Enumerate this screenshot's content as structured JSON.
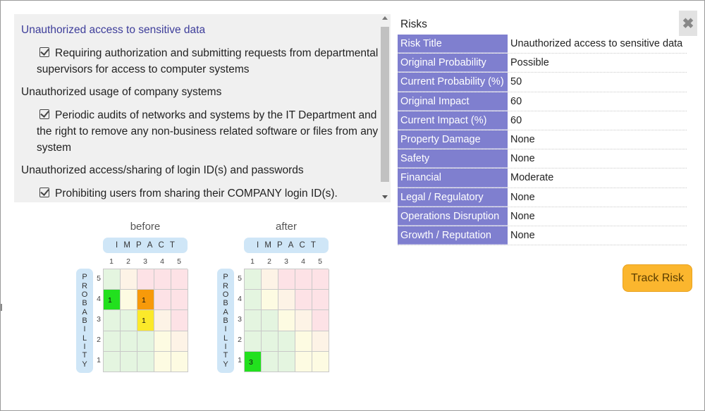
{
  "risk_list": {
    "groups": [
      {
        "risk": "Unauthorized access to sensitive data",
        "active": true,
        "mitigations": [
          "Requiring authorization and submitting requests from departmental supervisors for access to computer systems"
        ]
      },
      {
        "risk": "Unauthorized usage of company systems",
        "active": false,
        "mitigations": [
          "Periodic audits of networks and systems by the IT Department and the right to remove any non-business related software or files from any system"
        ]
      },
      {
        "risk": "Unauthorized access/sharing of login ID(s) and passwords",
        "active": false,
        "mitigations": [
          "Prohibiting users from sharing their COMPANY login ID(s)."
        ]
      }
    ]
  },
  "matrices": [
    {
      "title": "before",
      "impact_letters": [
        "I",
        "M",
        "P",
        "A",
        "C",
        "T"
      ],
      "probability_letters": [
        "P",
        "R",
        "O",
        "B",
        "A",
        "B",
        "I",
        "L",
        "I",
        "T",
        "Y"
      ],
      "columns": [
        "1",
        "2",
        "3",
        "4",
        "5"
      ],
      "rows": [
        "5",
        "4",
        "3",
        "2",
        "1"
      ],
      "markers": [
        {
          "probability": 4,
          "impact": 1,
          "count": "1",
          "color": "#22e01e"
        },
        {
          "probability": 4,
          "impact": 3,
          "count": "1",
          "color": "#f79a0a"
        },
        {
          "probability": 3,
          "impact": 3,
          "count": "1",
          "color": "#fbe92a"
        }
      ]
    },
    {
      "title": "after",
      "impact_letters": [
        "I",
        "M",
        "P",
        "A",
        "C",
        "T"
      ],
      "probability_letters": [
        "P",
        "R",
        "O",
        "B",
        "A",
        "B",
        "I",
        "L",
        "I",
        "T",
        "Y"
      ],
      "columns": [
        "1",
        "2",
        "3",
        "4",
        "5"
      ],
      "rows": [
        "5",
        "4",
        "3",
        "2",
        "1"
      ],
      "markers": [
        {
          "probability": 1,
          "impact": 1,
          "count": "3",
          "color": "#22e01e"
        }
      ]
    }
  ],
  "zone_colors": {
    "green": "#e4f5e0",
    "yellow": "#fdfbe2",
    "peach": "#fdf3e6",
    "pink": "#fde2e6"
  },
  "details": {
    "title": "Risks",
    "rows": [
      {
        "label": "Risk Title",
        "value": "Unauthorized access to sensitive data"
      },
      {
        "label": "Original Probability",
        "value": "Possible"
      },
      {
        "label": "Current Probability (%)",
        "value": "50"
      },
      {
        "label": "Original Impact",
        "value": "60"
      },
      {
        "label": "Current Impact (%)",
        "value": "60"
      },
      {
        "label": "Property Damage",
        "value": "None"
      },
      {
        "label": "Safety",
        "value": "None"
      },
      {
        "label": "Financial",
        "value": "Moderate"
      },
      {
        "label": "Legal / Regulatory",
        "value": "None"
      },
      {
        "label": "Operations Disruption",
        "value": "None"
      },
      {
        "label": "Growth / Reputation",
        "value": "None"
      }
    ]
  },
  "close_icon": "close-icon",
  "close_glyph": "✖",
  "track_button": "Track Risk"
}
